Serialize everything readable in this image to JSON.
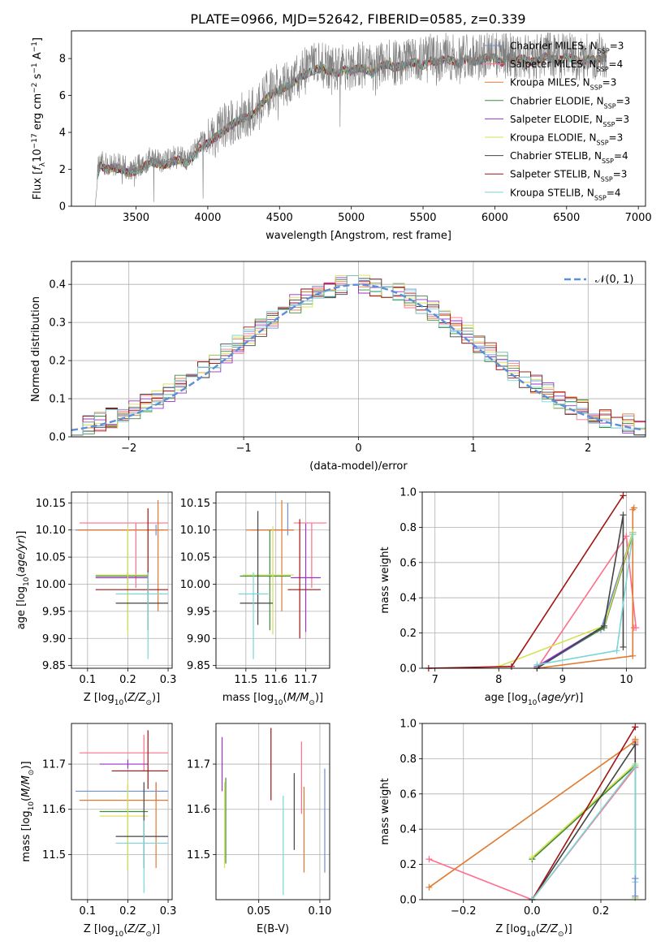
{
  "page_title": "PLATE=0966, MJD=52642, FIBERID=0585, z=0.339",
  "colors": {
    "Chabrier MILES": "#6b8fd8",
    "Salpeter MILES": "#ff6f8c",
    "Kroupa MILES": "#e07a30",
    "Chabrier ELODIE": "#3e8a3a",
    "Salpeter ELODIE": "#9a32c8",
    "Kroupa ELODIE": "#d6e050",
    "Chabrier STELIB": "#444444",
    "Salpeter STELIB": "#a01414",
    "Kroupa STELIB": "#7ad6d6",
    "Grey spectrum": "#808080",
    "Gaussian": "#5b8fd9"
  },
  "chart_data": [
    {
      "id": "spectrum",
      "type": "line",
      "title": "PLATE=0966, MJD=52642, FIBERID=0585, z=0.339",
      "xlabel": "wavelength [Angstrom, rest frame]",
      "ylabel": "Flux [f_λ 10^-17 erg cm^-2 s^-1 A^-1]",
      "xlim": [
        3050,
        7050
      ],
      "ylim": [
        0,
        9.5
      ],
      "xticks": [
        3500,
        4000,
        4500,
        5000,
        5500,
        6000,
        6500,
        7000
      ],
      "yticks": [
        0,
        2,
        4,
        6,
        8
      ],
      "legend_position": "top-right",
      "legend": [
        {
          "key": "Chabrier MILES",
          "text": "Chabrier MILES, N",
          "n": "=3"
        },
        {
          "key": "Salpeter MILES",
          "text": "Salpeter MILES, N",
          "n": "=4"
        },
        {
          "key": "Kroupa MILES",
          "text": "Kroupa MILES, N",
          "n": "=3"
        },
        {
          "key": "Chabrier ELODIE",
          "text": "Chabrier ELODIE, N",
          "n": "=3"
        },
        {
          "key": "Salpeter ELODIE",
          "text": "Salpeter ELODIE, N",
          "n": "=3"
        },
        {
          "key": "Kroupa ELODIE",
          "text": "Kroupa ELODIE, N",
          "n": "=3"
        },
        {
          "key": "Chabrier STELIB",
          "text": "Chabrier STELIB, N",
          "n": "=4"
        },
        {
          "key": "Salpeter STELIB",
          "text": "Salpeter STELIB, N",
          "n": "=3"
        },
        {
          "key": "Kroupa STELIB",
          "text": "Kroupa STELIB, N",
          "n": "=4"
        }
      ],
      "series": [
        {
          "name": "observed",
          "x": [
            3215,
            3230,
            3250,
            3300,
            3350,
            3400,
            3450,
            3500,
            3550,
            3600,
            3650,
            3700,
            3750,
            3800,
            3850,
            3900,
            3950,
            4000,
            4050,
            4100,
            4150,
            4200,
            4250,
            4300,
            4350,
            4400,
            4450,
            4500,
            4550,
            4600,
            4650,
            4700,
            4750,
            4800,
            4850,
            4900,
            4950,
            5000,
            5050,
            5100,
            5150,
            5200,
            5250,
            5300,
            5350,
            5400,
            5450,
            5500,
            5550,
            5600,
            5650,
            5700,
            5750,
            5800,
            5850,
            5900,
            5950,
            6000,
            6050,
            6100,
            6150,
            6200,
            6250,
            6300,
            6350,
            6400,
            6450,
            6500,
            6550,
            6600,
            6650,
            6700,
            6750,
            6780
          ],
          "y": [
            0,
            1.9,
            2.4,
            2.2,
            2.3,
            2.2,
            2.0,
            2.1,
            2.3,
            2.6,
            2.5,
            2.4,
            2.6,
            2.7,
            2.5,
            2.9,
            3.4,
            3.6,
            3.9,
            4.2,
            4.5,
            4.8,
            5.0,
            5.1,
            5.5,
            6.0,
            6.3,
            6.5,
            6.7,
            6.9,
            7.2,
            7.4,
            7.6,
            7.7,
            7.5,
            7.4,
            7.6,
            7.5,
            7.7,
            7.6,
            7.4,
            7.8,
            7.9,
            7.7,
            7.8,
            7.9,
            8.0,
            7.8,
            8.1,
            8.0,
            8.2,
            8.1,
            7.9,
            8.2,
            8.0,
            8.1,
            8.3,
            8.2,
            8.0,
            8.3,
            8.1,
            8.2,
            8.0,
            8.1,
            8.3,
            8.2,
            8.1,
            8.3,
            8.2,
            8.0,
            8.2,
            8.1,
            8.3,
            8.2
          ]
        }
      ]
    },
    {
      "id": "residuals",
      "type": "line",
      "xlabel": "(data-model)/error",
      "ylabel": "Normed distribution",
      "xlim": [
        -2.5,
        2.5
      ],
      "ylim": [
        0,
        0.46
      ],
      "xticks": [
        -2,
        -1,
        0,
        1,
        2
      ],
      "yticks": [
        0.0,
        0.1,
        0.2,
        0.3,
        0.4
      ],
      "grid": true,
      "legend_position": "top-right",
      "gaussian_label": "𝒩(0, 1)"
    },
    {
      "id": "age_vs_Z",
      "type": "scatter",
      "xlabel": "Z [log10(Z/Z⊙)]",
      "ylabel": "age  [log10(age/yr)]",
      "xlim": [
        0.06,
        0.31
      ],
      "ylim": [
        9.845,
        10.17
      ],
      "xticks": [
        0.1,
        0.2,
        0.3
      ],
      "yticks": [
        9.85,
        9.9,
        9.95,
        10.0,
        10.05,
        10.1,
        10.15
      ],
      "grid": true,
      "points": [
        {
          "key": "Chabrier MILES",
          "x": 0.27,
          "y": 10.1,
          "xerr": [
            0.2,
            0.02
          ],
          "yerr": [
            0.01,
            0.01
          ]
        },
        {
          "key": "Salpeter MILES",
          "x": 0.22,
          "y": 10.113,
          "xerr": [
            0.14,
            0.08
          ],
          "yerr": [
            0.12,
            0.0
          ]
        },
        {
          "key": "Kroupa MILES",
          "x": 0.275,
          "y": 10.1,
          "xerr": [
            0.2,
            0.025
          ],
          "yerr": [
            0.15,
            0.055
          ]
        },
        {
          "key": "Chabrier ELODIE",
          "x": 0.2,
          "y": 10.015,
          "xerr": [
            0.08,
            0.05
          ],
          "yerr": [
            0.1,
            0.085
          ]
        },
        {
          "key": "Salpeter ELODIE",
          "x": 0.2,
          "y": 10.012,
          "xerr": [
            0.08,
            0.05
          ],
          "yerr": [
            0.01,
            0.01
          ]
        },
        {
          "key": "Kroupa ELODIE",
          "x": 0.2,
          "y": 10.017,
          "xerr": [
            0.08,
            0.05
          ],
          "yerr": [
            0.11,
            0.09
          ]
        },
        {
          "key": "Chabrier STELIB",
          "x": 0.25,
          "y": 9.965,
          "xerr": [
            0.08,
            0.05
          ],
          "yerr": [
            0.05,
            0.06
          ]
        },
        {
          "key": "Salpeter STELIB",
          "x": 0.25,
          "y": 9.99,
          "xerr": [
            0.13,
            0.05
          ],
          "yerr": [
            0.01,
            0.15
          ]
        },
        {
          "key": "Kroupa STELIB",
          "x": 0.25,
          "y": 9.982,
          "xerr": [
            0.08,
            0.05
          ],
          "yerr": [
            0.12,
            0.04
          ]
        }
      ]
    },
    {
      "id": "age_vs_mass",
      "type": "scatter",
      "xlabel": "mass [log10(M/M⊙)]",
      "xlim": [
        11.4,
        11.78
      ],
      "ylim": [
        9.845,
        10.17
      ],
      "xticks": [
        11.5,
        11.6,
        11.7
      ],
      "yticks": [
        9.85,
        9.9,
        9.95,
        10.0,
        10.05,
        10.1,
        10.15
      ],
      "grid": true,
      "points": [
        {
          "key": "Chabrier MILES",
          "x": 11.64,
          "y": 10.1,
          "xerr": [
            0.12,
            0.02
          ],
          "yerr": [
            0.01,
            0.05
          ]
        },
        {
          "key": "Salpeter MILES",
          "x": 11.72,
          "y": 10.113,
          "xerr": [
            0.06,
            0.05
          ],
          "yerr": [
            0.12,
            0.0
          ]
        },
        {
          "key": "Kroupa MILES",
          "x": 11.62,
          "y": 10.1,
          "xerr": [
            0.12,
            0.04
          ],
          "yerr": [
            0.15,
            0.055
          ]
        },
        {
          "key": "Chabrier ELODIE",
          "x": 11.58,
          "y": 10.015,
          "xerr": [
            0.1,
            0.07
          ],
          "yerr": [
            0.1,
            0.085
          ]
        },
        {
          "key": "Salpeter ELODIE",
          "x": 11.7,
          "y": 10.012,
          "xerr": [
            0.05,
            0.05
          ],
          "yerr": [
            0.1,
            0.1
          ]
        },
        {
          "key": "Kroupa ELODIE",
          "x": 11.59,
          "y": 10.017,
          "xerr": [
            0.1,
            0.07
          ],
          "yerr": [
            0.11,
            0.09
          ]
        },
        {
          "key": "Chabrier STELIB",
          "x": 11.54,
          "y": 9.965,
          "xerr": [
            0.06,
            0.05
          ],
          "yerr": [
            0.04,
            0.17
          ]
        },
        {
          "key": "Salpeter STELIB",
          "x": 11.68,
          "y": 9.99,
          "xerr": [
            0.04,
            0.07
          ],
          "yerr": [
            0.09,
            0.13
          ]
        },
        {
          "key": "Kroupa STELIB",
          "x": 11.525,
          "y": 9.982,
          "xerr": [
            0.05,
            0.05
          ],
          "yerr": [
            0.12,
            0.04
          ]
        }
      ]
    },
    {
      "id": "massweight_vs_age",
      "type": "line",
      "xlabel": "age  [log10(age/yr)]",
      "ylabel": "mass weight",
      "xlim": [
        6.8,
        10.3
      ],
      "ylim": [
        0,
        1.0
      ],
      "xticks": [
        7,
        8,
        9,
        10
      ],
      "yticks": [
        0.0,
        0.2,
        0.4,
        0.6,
        0.8,
        1.0
      ],
      "grid": true,
      "series": [
        {
          "key": "Chabrier MILES",
          "x": [
            8.6,
            9.6,
            10.1
          ],
          "y": [
            0.0,
            0.22,
            0.77
          ]
        },
        {
          "key": "Salpeter MILES",
          "x": [
            8.6,
            10.0,
            10.15,
            10.12
          ],
          "y": [
            0.0,
            0.75,
            0.23,
            0.23
          ]
        },
        {
          "key": "Kroupa MILES",
          "x": [
            8.6,
            10.1,
            10.1,
            10.12
          ],
          "y": [
            0.0,
            0.07,
            0.9,
            0.91
          ]
        },
        {
          "key": "Chabrier ELODIE",
          "x": [
            8.6,
            9.65,
            10.1
          ],
          "y": [
            0.01,
            0.23,
            0.76
          ]
        },
        {
          "key": "Salpeter ELODIE",
          "x": [
            8.6,
            9.65,
            10.1
          ],
          "y": [
            0.01,
            0.24,
            0.77
          ]
        },
        {
          "key": "Kroupa ELODIE",
          "x": [
            8.0,
            9.65,
            10.1
          ],
          "y": [
            0.01,
            0.24,
            0.77
          ]
        },
        {
          "key": "Chabrier STELIB",
          "x": [
            8.6,
            9.65,
            9.95,
            9.95
          ],
          "y": [
            0.0,
            0.24,
            0.87,
            0.12
          ]
        },
        {
          "key": "Salpeter STELIB",
          "x": [
            6.9,
            8.2,
            9.95
          ],
          "y": [
            0.0,
            0.01,
            0.98
          ]
        },
        {
          "key": "Kroupa STELIB",
          "x": [
            8.6,
            9.85,
            10.1
          ],
          "y": [
            0.02,
            0.1,
            0.76
          ]
        }
      ]
    },
    {
      "id": "mass_vs_Z",
      "type": "scatter",
      "xlabel": "Z [log10(Z/Z⊙)]",
      "ylabel": "mass [log10(M/M⊙)]",
      "xlim": [
        0.06,
        0.31
      ],
      "ylim": [
        11.4,
        11.79
      ],
      "xticks": [
        0.1,
        0.2,
        0.3
      ],
      "yticks": [
        11.5,
        11.6,
        11.7
      ],
      "grid": true,
      "points": [
        {
          "key": "Chabrier MILES",
          "x": 0.27,
          "y": 11.64,
          "xerr": [
            0.2,
            0.03
          ],
          "yerr": [
            0.02,
            0.02
          ]
        },
        {
          "key": "Salpeter MILES",
          "x": 0.24,
          "y": 11.725,
          "xerr": [
            0.16,
            0.06
          ],
          "yerr": [
            0.04,
            0.04
          ]
        },
        {
          "key": "Kroupa MILES",
          "x": 0.27,
          "y": 11.62,
          "xerr": [
            0.19,
            0.03
          ],
          "yerr": [
            0.15,
            0.04
          ]
        },
        {
          "key": "Chabrier ELODIE",
          "x": 0.2,
          "y": 11.595,
          "xerr": [
            0.07,
            0.05
          ],
          "yerr": [
            0.13,
            0.06
          ]
        },
        {
          "key": "Salpeter ELODIE",
          "x": 0.2,
          "y": 11.7,
          "xerr": [
            0.07,
            0.05
          ],
          "yerr": [
            0.01,
            0.01
          ]
        },
        {
          "key": "Kroupa ELODIE",
          "x": 0.2,
          "y": 11.585,
          "xerr": [
            0.07,
            0.05
          ],
          "yerr": [
            0.12,
            0.08
          ]
        },
        {
          "key": "Chabrier STELIB",
          "x": 0.24,
          "y": 11.54,
          "xerr": [
            0.07,
            0.06
          ],
          "yerr": [
            0.07,
            0.12
          ]
        },
        {
          "key": "Salpeter STELIB",
          "x": 0.25,
          "y": 11.685,
          "xerr": [
            0.09,
            0.05
          ],
          "yerr": [
            0.04,
            0.09
          ]
        },
        {
          "key": "Kroupa STELIB",
          "x": 0.24,
          "y": 11.525,
          "xerr": [
            0.07,
            0.06
          ],
          "yerr": [
            0.11,
            0.05
          ]
        }
      ]
    },
    {
      "id": "mass_vs_EBV",
      "type": "scatter",
      "xlabel": "E(B-V)",
      "xlim": [
        0.015,
        0.108
      ],
      "ylim": [
        11.4,
        11.79
      ],
      "xticks": [
        0.05,
        0.1
      ],
      "yticks": [
        11.5,
        11.6,
        11.7
      ],
      "grid": true,
      "points": [
        {
          "key": "Salpeter ELODIE",
          "x": 0.02,
          "yerr": [
            11.64,
            11.76
          ]
        },
        {
          "key": "Kroupa ELODIE",
          "x": 0.022,
          "yerr": [
            11.47,
            11.66
          ]
        },
        {
          "key": "Chabrier ELODIE",
          "x": 0.023,
          "yerr": [
            11.48,
            11.67
          ]
        },
        {
          "key": "Salpeter STELIB",
          "x": 0.06,
          "yerr": [
            11.62,
            11.78
          ]
        },
        {
          "key": "Kroupa STELIB",
          "x": 0.07,
          "yerr": [
            11.41,
            11.63
          ]
        },
        {
          "key": "Chabrier STELIB",
          "x": 0.079,
          "yerr": [
            11.51,
            11.68
          ]
        },
        {
          "key": "Salpeter MILES",
          "x": 0.085,
          "yerr": [
            11.59,
            11.75
          ]
        },
        {
          "key": "Kroupa MILES",
          "x": 0.087,
          "yerr": [
            11.46,
            11.65
          ]
        },
        {
          "key": "Chabrier MILES",
          "x": 0.104,
          "yerr": [
            11.46,
            11.69
          ]
        }
      ]
    },
    {
      "id": "massweight_vs_Z",
      "type": "line",
      "xlabel": "Z [log10(Z/Z⊙)]",
      "ylabel": "mass weight",
      "xlim": [
        -0.32,
        0.33
      ],
      "ylim": [
        0,
        1.0
      ],
      "xticks": [
        -0.2,
        0.0,
        0.2
      ],
      "yticks": [
        0.0,
        0.2,
        0.4,
        0.6,
        0.8,
        1.0
      ],
      "grid": true,
      "series": [
        {
          "key": "Salpeter MILES",
          "x": [
            -0.3,
            0.0,
            0.3,
            0.3
          ],
          "y": [
            0.23,
            0.0,
            0.75,
            0.89
          ]
        },
        {
          "key": "Kroupa MILES",
          "x": [
            -0.3,
            0.3,
            0.3
          ],
          "y": [
            0.07,
            0.9,
            0.91
          ]
        },
        {
          "key": "Chabrier ELODIE",
          "x": [
            0.0,
            0.3,
            0.3
          ],
          "y": [
            0.23,
            0.76,
            0.01
          ]
        },
        {
          "key": "Kroupa ELODIE",
          "x": [
            0.0,
            0.3,
            0.3
          ],
          "y": [
            0.24,
            0.77,
            0.01
          ]
        },
        {
          "key": "Chabrier STELIB",
          "x": [
            0.0,
            0.3,
            0.3
          ],
          "y": [
            0.0,
            0.88,
            0.12
          ]
        },
        {
          "key": "Salpeter STELIB",
          "x": [
            0.0,
            0.3
          ],
          "y": [
            0.0,
            0.98
          ]
        },
        {
          "key": "Kroupa STELIB",
          "x": [
            0.0,
            0.3,
            0.3
          ],
          "y": [
            0.0,
            0.76,
            0.1
          ]
        },
        {
          "key": "Chabrier MILES",
          "x": [
            0.3,
            0.3
          ],
          "y": [
            0.02,
            0.12
          ]
        }
      ]
    }
  ]
}
